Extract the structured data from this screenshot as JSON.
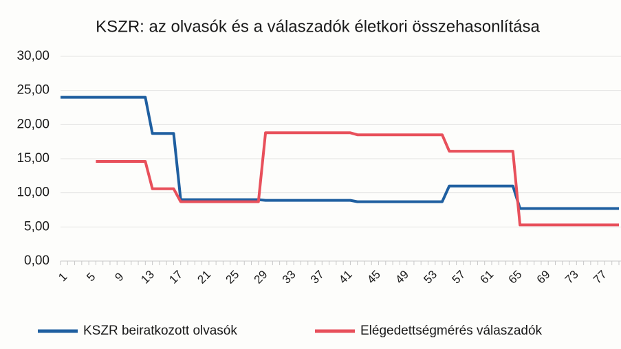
{
  "chart_data": {
    "type": "line",
    "title": "KSZR: az olvasók és a válaszadók életkori összehasonlítása",
    "categories": [
      1,
      null,
      null,
      null,
      5,
      null,
      null,
      null,
      9,
      null,
      null,
      null,
      13,
      null,
      null,
      null,
      17,
      null,
      null,
      null,
      21,
      null,
      null,
      null,
      25,
      null,
      null,
      null,
      29,
      null,
      null,
      null,
      33,
      null,
      null,
      null,
      37,
      null,
      null,
      null,
      41,
      null,
      null,
      null,
      45,
      null,
      null,
      null,
      49,
      null,
      null,
      null,
      53,
      null,
      null,
      null,
      57,
      null,
      null,
      null,
      61,
      null,
      null,
      null,
      65,
      null,
      null,
      null,
      69,
      null,
      null,
      null,
      73,
      null,
      null,
      null,
      77,
      null,
      null,
      null
    ],
    "series": [
      {
        "name": "KSZR beiratkozott olvasók",
        "color": "#1f5fa0",
        "values": [
          24,
          24,
          24,
          24,
          24,
          24,
          24,
          24,
          24,
          24,
          24,
          24,
          24,
          18.7,
          18.7,
          18.7,
          18.7,
          9,
          9,
          9,
          9,
          9,
          9,
          9,
          9,
          9,
          9,
          9,
          9,
          8.9,
          8.9,
          8.9,
          8.9,
          8.9,
          8.9,
          8.9,
          8.9,
          8.9,
          8.9,
          8.9,
          8.9,
          8.9,
          8.7,
          8.7,
          8.7,
          8.7,
          8.7,
          8.7,
          8.7,
          8.7,
          8.7,
          8.7,
          8.7,
          8.7,
          8.7,
          11,
          11,
          11,
          11,
          11,
          11,
          11,
          11,
          11,
          11,
          7.7,
          7.7,
          7.7,
          7.7,
          7.7,
          7.7,
          7.7,
          7.7,
          7.7,
          7.7,
          7.7,
          7.7,
          7.7,
          7.7,
          7.7
        ]
      },
      {
        "name": "Elégedettségmérés válaszadók",
        "color": "#e8505b",
        "values": [
          null,
          null,
          null,
          null,
          null,
          14.6,
          14.6,
          14.6,
          14.6,
          14.6,
          14.6,
          14.6,
          14.6,
          10.6,
          10.6,
          10.6,
          10.6,
          8.7,
          8.7,
          8.7,
          8.7,
          8.7,
          8.7,
          8.7,
          8.7,
          8.7,
          8.7,
          8.7,
          8.7,
          18.8,
          18.8,
          18.8,
          18.8,
          18.8,
          18.8,
          18.8,
          18.8,
          18.8,
          18.8,
          18.8,
          18.8,
          18.8,
          18.5,
          18.5,
          18.5,
          18.5,
          18.5,
          18.5,
          18.5,
          18.5,
          18.5,
          18.5,
          18.5,
          18.5,
          18.5,
          16.1,
          16.1,
          16.1,
          16.1,
          16.1,
          16.1,
          16.1,
          16.1,
          16.1,
          16.1,
          5.3,
          5.3,
          5.3,
          5.3,
          5.3,
          5.3,
          5.3,
          5.3,
          5.3,
          5.3,
          5.3,
          5.3,
          5.3,
          5.3,
          5.3
        ]
      }
    ],
    "ylim": [
      0,
      30
    ],
    "yticks": [
      {
        "value": 0,
        "label": "0,00"
      },
      {
        "value": 5,
        "label": "5,00"
      },
      {
        "value": 10,
        "label": "10,00"
      },
      {
        "value": 15,
        "label": "15,00"
      },
      {
        "value": 20,
        "label": "20,00"
      },
      {
        "value": 25,
        "label": "25,00"
      },
      {
        "value": 30,
        "label": "30,00"
      }
    ],
    "grid": true
  }
}
